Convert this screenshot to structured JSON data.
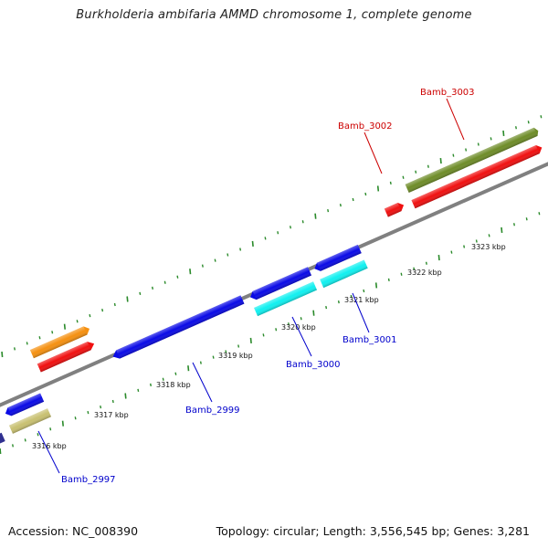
{
  "title": "Burkholderia ambifaria AMMD chromosome 1, complete genome",
  "footer": {
    "accession": "Accession: NC_008390",
    "summary": "Topology: circular; Length: 3,556,545 bp; Genes: 3,281"
  },
  "axis_labels": [
    "3316 kbp",
    "3317 kbp",
    "3318 kbp",
    "3319 kbp",
    "3320 kbp",
    "3321 kbp",
    "3322 kbp",
    "3323 kbp"
  ],
  "gene_labels": [
    {
      "text": "Bamb_2997",
      "color": "#0000cc"
    },
    {
      "text": "Bamb_2999",
      "color": "#0000cc"
    },
    {
      "text": "Bamb_3000",
      "color": "#0000cc"
    },
    {
      "text": "Bamb_3001",
      "color": "#0000cc"
    },
    {
      "text": "Bamb_3002",
      "color": "#cc0000"
    },
    {
      "text": "Bamb_3003",
      "color": "#cc0000"
    }
  ],
  "colors": {
    "backbone": "#808080",
    "tick": "#2a8a2a",
    "blue": "#0a0ae6",
    "red": "#f01010",
    "orange": "#f59010",
    "olive": "#6e8c28",
    "cyan": "#10f0f0",
    "khaki": "#c8c070",
    "navy": "#303090"
  }
}
